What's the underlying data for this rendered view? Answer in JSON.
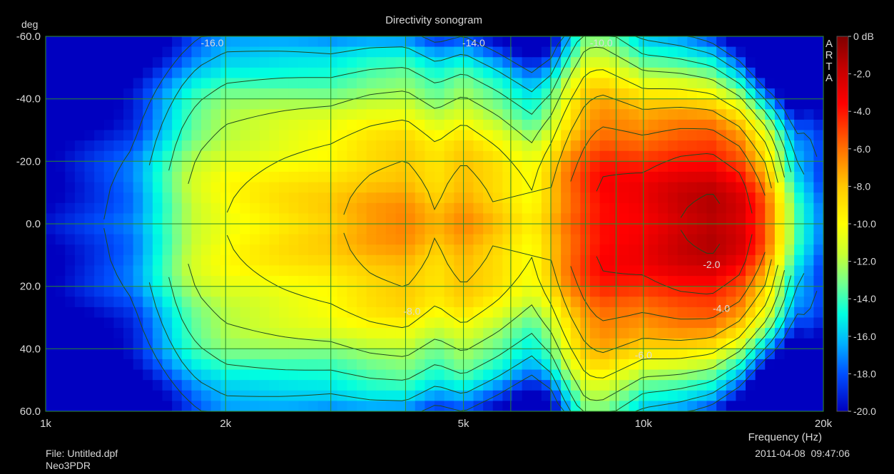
{
  "chart_data": {
    "type": "heatmap",
    "title": "Directivity sonogram",
    "xlabel": "Frequency (Hz)",
    "ylabel": "deg",
    "x_scale": "log",
    "xlim": [
      1000,
      20000
    ],
    "ylim": [
      -60,
      60
    ],
    "x_ticks": [
      {
        "value": 1000,
        "label": "1k"
      },
      {
        "value": 2000,
        "label": "2k"
      },
      {
        "value": 5000,
        "label": "5k"
      },
      {
        "value": 10000,
        "label": "10k"
      },
      {
        "value": 20000,
        "label": "20k"
      }
    ],
    "y_ticks": [
      {
        "value": -60,
        "label": "-60.0"
      },
      {
        "value": -40,
        "label": "-40.0"
      },
      {
        "value": -20,
        "label": "-20.0"
      },
      {
        "value": 0,
        "label": "0.0"
      },
      {
        "value": 20,
        "label": "20.0"
      },
      {
        "value": 40,
        "label": "40.0"
      },
      {
        "value": 60,
        "label": "60.0"
      }
    ],
    "grid": true,
    "colorbar": {
      "min": -20,
      "max": 0,
      "tick_labels": [
        "0 dB",
        "-2.0",
        "-4.0",
        "-6.0",
        "-8.0",
        "-10.0",
        "-12.0",
        "-14.0",
        "-16.0",
        "-18.0",
        "-20.0"
      ]
    },
    "on_axis_response": {
      "x": [
        1000,
        1400,
        1700,
        1800,
        2000,
        2500,
        3000,
        3500,
        4000,
        4500,
        5000,
        5700,
        6500,
        7500,
        8500,
        10000,
        11500,
        13000,
        14500,
        16000,
        18000,
        20000
      ],
      "values": [
        -20,
        -17,
        -12,
        -11,
        -10,
        -9,
        -8.3,
        -7.3,
        -6.8,
        -8,
        -6.8,
        -8,
        -9.6,
        -5.6,
        -3.4,
        -3,
        -2,
        -1.5,
        -2.5,
        -5.5,
        -14,
        -18
      ]
    },
    "beam_half_width_deg": {
      "x": [
        1000,
        1400,
        1700,
        2000,
        3000,
        5000,
        7000,
        8000,
        10000,
        13000,
        16000,
        18000,
        20000
      ],
      "values": [
        60,
        60,
        55,
        55,
        48,
        44,
        40,
        50,
        40,
        35,
        30,
        35,
        60
      ]
    },
    "contour_labels": [
      {
        "text": "-16.0",
        "freq": 1900,
        "deg": -58
      },
      {
        "text": "-14.0",
        "freq": 5200,
        "deg": -58
      },
      {
        "text": "-10.0",
        "freq": 8500,
        "deg": -58
      },
      {
        "text": "-8.0",
        "freq": 4100,
        "deg": 28
      },
      {
        "text": "-2.0",
        "freq": 13000,
        "deg": 13
      },
      {
        "text": "-4.0",
        "freq": 13500,
        "deg": 27
      },
      {
        "text": "-6.0",
        "freq": 10000,
        "deg": 42
      }
    ]
  },
  "brand": {
    "letters": [
      "A",
      "R",
      "T",
      "A"
    ]
  },
  "footer": {
    "file": "File: Untitled.dpf",
    "name": "Neo3PDR",
    "datetime": "2011-04-08  09:47:06"
  }
}
